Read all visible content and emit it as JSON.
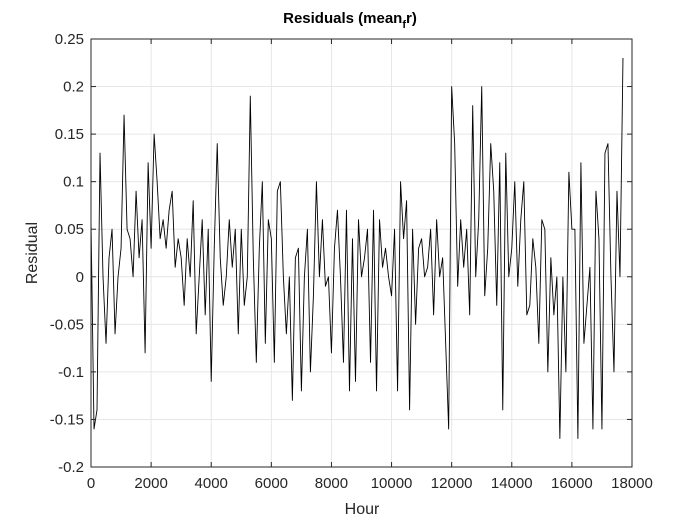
{
  "chart_data": {
    "type": "line",
    "title_main": "Residuals (mean",
    "title_sub": "f",
    "title_tail": "r)",
    "xlabel": "Hour",
    "ylabel": "Residual",
    "xlim": [
      0,
      18000
    ],
    "ylim": [
      -0.2,
      0.25
    ],
    "x_ticks": [
      0,
      2000,
      4000,
      6000,
      8000,
      10000,
      12000,
      14000,
      16000,
      18000
    ],
    "x_tick_labels": [
      "0",
      "2000",
      "4000",
      "6000",
      "8000",
      "10000",
      "12000",
      "14000",
      "16000",
      "18000"
    ],
    "y_ticks": [
      -0.2,
      -0.15,
      -0.1,
      -0.05,
      0,
      0.05,
      0.1,
      0.15,
      0.2,
      0.25
    ],
    "y_tick_labels": [
      "-0.2",
      "-0.15",
      "-0.1",
      "-0.05",
      "0",
      "0.05",
      "0.1",
      "0.15",
      "0.2",
      "0.25"
    ],
    "grid": true,
    "line_color": "#000000",
    "x_step": 100,
    "values": [
      0.06,
      -0.16,
      -0.14,
      0.13,
      0.0,
      -0.07,
      0.02,
      0.05,
      -0.06,
      0.0,
      0.03,
      0.17,
      0.05,
      0.04,
      0.0,
      0.09,
      0.02,
      0.06,
      -0.08,
      0.12,
      0.03,
      0.15,
      0.1,
      0.04,
      0.06,
      0.03,
      0.07,
      0.09,
      0.01,
      0.04,
      0.02,
      -0.03,
      0.04,
      0.0,
      0.08,
      -0.06,
      0.0,
      0.06,
      -0.04,
      0.05,
      -0.11,
      0.03,
      0.14,
      0.02,
      -0.03,
      0.0,
      0.06,
      0.01,
      0.05,
      -0.06,
      0.05,
      -0.03,
      0.0,
      0.19,
      0.02,
      -0.09,
      0.03,
      0.1,
      -0.07,
      0.06,
      0.04,
      -0.09,
      0.09,
      0.1,
      0.0,
      -0.06,
      0.0,
      -0.13,
      0.02,
      0.03,
      -0.12,
      0.0,
      0.05,
      -0.1,
      -0.02,
      0.1,
      0.0,
      0.06,
      -0.01,
      0.0,
      -0.08,
      0.03,
      0.07,
      0.0,
      -0.09,
      0.07,
      -0.12,
      0.04,
      -0.11,
      0.06,
      0.0,
      0.02,
      0.05,
      -0.09,
      0.07,
      -0.12,
      0.06,
      0.01,
      0.03,
      0.0,
      -0.02,
      0.05,
      -0.12,
      0.1,
      0.04,
      0.08,
      -0.14,
      0.05,
      -0.05,
      0.03,
      0.04,
      0.0,
      0.01,
      0.05,
      -0.04,
      0.06,
      0.0,
      0.02,
      -0.07,
      -0.16,
      0.2,
      0.14,
      -0.01,
      0.06,
      0.01,
      0.05,
      -0.04,
      0.18,
      0.0,
      0.06,
      0.2,
      -0.02,
      0.03,
      0.14,
      0.09,
      -0.03,
      0.12,
      -0.14,
      0.13,
      0.0,
      0.03,
      0.1,
      -0.01,
      0.06,
      0.1,
      -0.04,
      -0.03,
      0.04,
      0.01,
      -0.07,
      0.06,
      0.05,
      -0.1,
      0.02,
      -0.04,
      0.0,
      -0.17,
      0.0,
      -0.1,
      0.11,
      0.05,
      0.05,
      -0.17,
      0.12,
      -0.07,
      -0.03,
      0.01,
      -0.16,
      0.09,
      0.04,
      -0.16,
      0.13,
      0.14,
      0.0,
      -0.1,
      0.09,
      0.0,
      0.23
    ]
  }
}
